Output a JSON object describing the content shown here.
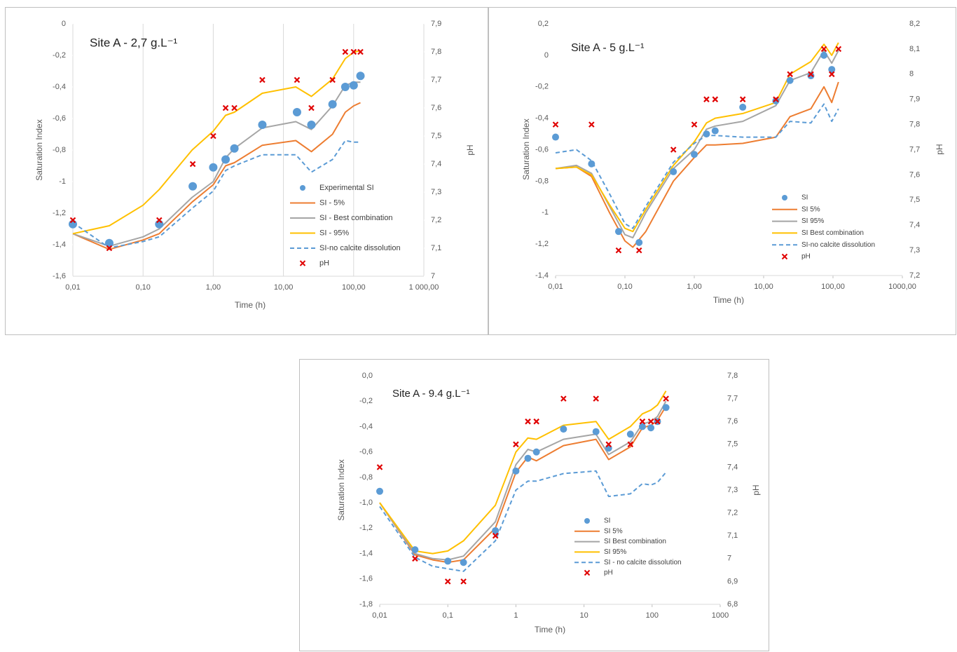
{
  "chart_data": [
    {
      "type": "line",
      "title": "Site A - 2,7 g.L⁻¹",
      "x_label": "Time (h)",
      "y_label": "Saturation Index",
      "y2_label": "pH",
      "x_scale": "log",
      "grid_x": true,
      "legend": "lower right",
      "xlim": [
        0.01,
        1000
      ],
      "xticks": [
        {
          "value": 0.01,
          "label": "0,01"
        },
        {
          "value": 0.1,
          "label": "0,10"
        },
        {
          "value": 1,
          "label": "1,00"
        },
        {
          "value": 10,
          "label": "10,00"
        },
        {
          "value": 100,
          "label": "100,00"
        },
        {
          "value": 1000,
          "label": "1 000,00"
        }
      ],
      "ylim": [
        -1.6,
        0
      ],
      "yticks": [
        0,
        {
          "value": -0.2,
          "label": "-0,2"
        },
        {
          "value": -0.4,
          "label": "-0,4"
        },
        {
          "value": -0.6,
          "label": "-0,6"
        },
        {
          "value": -0.8,
          "label": "-0,8"
        },
        -1,
        {
          "value": -1.2,
          "label": "-1,2"
        },
        {
          "value": -1.4,
          "label": "-1,4"
        },
        {
          "value": -1.6,
          "label": "-1,6"
        }
      ],
      "y2lim": [
        7,
        7.9
      ],
      "y2ticks": [
        {
          "value": 7.9,
          "label": "7,9"
        },
        {
          "value": 7.8,
          "label": "7,8"
        },
        {
          "value": 7.7,
          "label": "7,7"
        },
        {
          "value": 7.6,
          "label": "7,6"
        },
        {
          "value": 7.5,
          "label": "7,5"
        },
        {
          "value": 7.4,
          "label": "7,4"
        },
        {
          "value": 7.3,
          "label": "7,3"
        },
        {
          "value": 7.2,
          "label": "7,2"
        },
        {
          "value": 7.1,
          "label": "7,1"
        },
        7
      ],
      "series": [
        {
          "name": "Experimental SI",
          "style": "dot",
          "color": "#5b9bd5",
          "x": [
            0.01,
            0.033,
            0.17,
            0.51,
            1,
            1.5,
            2,
            5,
            15.6,
            25,
            50,
            76,
            100,
            125
          ],
          "values": [
            -1.27,
            -1.39,
            -1.27,
            -1.03,
            -0.91,
            -0.86,
            -0.79,
            -0.64,
            -0.56,
            -0.64,
            -0.51,
            -0.4,
            -0.39,
            -0.33
          ]
        },
        {
          "name": "SI - 5%",
          "style": "line",
          "color": "#ed7d31",
          "x": [
            0.01,
            0.033,
            0.1,
            0.17,
            0.5,
            1,
            1.5,
            2,
            5,
            15,
            25,
            50,
            76,
            100,
            125
          ],
          "values": [
            -1.33,
            -1.43,
            -1.37,
            -1.33,
            -1.13,
            -1.02,
            -0.9,
            -0.88,
            -0.77,
            -0.74,
            -0.81,
            -0.7,
            -0.56,
            -0.52,
            -0.5
          ]
        },
        {
          "name": "SI - Best combination",
          "style": "line",
          "color": "#a5a5a5",
          "x": [
            0.01,
            0.033,
            0.1,
            0.17,
            0.5,
            1,
            1.5,
            2,
            5,
            15,
            25,
            50,
            76,
            100,
            125
          ],
          "values": [
            -1.33,
            -1.41,
            -1.35,
            -1.3,
            -1.1,
            -1.0,
            -0.85,
            -0.79,
            -0.66,
            -0.62,
            -0.67,
            -0.52,
            -0.39,
            -0.37,
            -0.37
          ]
        },
        {
          "name": "SI - 95%",
          "style": "line",
          "color": "#ffc000",
          "x": [
            0.01,
            0.033,
            0.1,
            0.17,
            0.5,
            1,
            1.5,
            2,
            5,
            15,
            25,
            50,
            76,
            100,
            125
          ],
          "values": [
            -1.33,
            -1.28,
            -1.15,
            -1.05,
            -0.8,
            -0.68,
            -0.58,
            -0.56,
            -0.44,
            -0.4,
            -0.46,
            -0.35,
            -0.22,
            -0.18,
            -0.17
          ]
        },
        {
          "name": "SI-no calcite dissolution",
          "style": "dashed",
          "color": "#5b9bd5",
          "x": [
            0.01,
            0.033,
            0.1,
            0.17,
            0.5,
            1,
            1.5,
            2,
            5,
            15,
            25,
            50,
            76,
            100,
            125
          ],
          "values": [
            -1.26,
            -1.42,
            -1.38,
            -1.35,
            -1.17,
            -1.06,
            -0.93,
            -0.9,
            -0.83,
            -0.83,
            -0.94,
            -0.86,
            -0.74,
            -0.75,
            -0.75
          ]
        },
        {
          "name": "pH",
          "style": "cross",
          "color": "#e00000",
          "axis": "y2",
          "x": [
            0.01,
            0.033,
            0.17,
            0.51,
            1,
            1.5,
            2,
            5,
            15.6,
            25,
            50,
            76,
            100,
            125
          ],
          "values": [
            7.2,
            7.1,
            7.2,
            7.4,
            7.5,
            7.6,
            7.6,
            7.7,
            7.7,
            7.6,
            7.7,
            7.8,
            7.8,
            7.8
          ]
        }
      ]
    },
    {
      "type": "line",
      "title": "Site A - 5 g.L⁻¹",
      "x_label": "Time (h)",
      "y_label": "Saturation Index",
      "y2_label": "pH",
      "x_scale": "log",
      "grid_x": false,
      "legend": "lower right",
      "xlim": [
        0.01,
        1000
      ],
      "xticks": [
        {
          "value": 0.01,
          "label": "0,01"
        },
        {
          "value": 0.1,
          "label": "0,10"
        },
        {
          "value": 1,
          "label": "1,00"
        },
        {
          "value": 10,
          "label": "10,00"
        },
        {
          "value": 100,
          "label": "100,00"
        },
        {
          "value": 1000,
          "label": "1000,00"
        }
      ],
      "ylim": [
        -1.4,
        0.2
      ],
      "yticks": [
        {
          "value": 0.2,
          "label": "0,2"
        },
        0,
        {
          "value": -0.2,
          "label": "-0,2"
        },
        {
          "value": -0.4,
          "label": "-0,4"
        },
        {
          "value": -0.6,
          "label": "-0,6"
        },
        {
          "value": -0.8,
          "label": "-0,8"
        },
        -1,
        {
          "value": -1.2,
          "label": "-1,2"
        },
        {
          "value": -1.4,
          "label": "-1,4"
        }
      ],
      "y2lim": [
        7.2,
        8.2
      ],
      "y2ticks": [
        {
          "value": 8.2,
          "label": "8,2"
        },
        {
          "value": 8.1,
          "label": "8,1"
        },
        8,
        {
          "value": 7.9,
          "label": "7,9"
        },
        {
          "value": 7.8,
          "label": "7,8"
        },
        {
          "value": 7.7,
          "label": "7,7"
        },
        {
          "value": 7.6,
          "label": "7,6"
        },
        {
          "value": 7.5,
          "label": "7,5"
        },
        {
          "value": 7.4,
          "label": "7,4"
        },
        {
          "value": 7.3,
          "label": "7,3"
        },
        {
          "value": 7.2,
          "label": "7,2"
        }
      ],
      "series": [
        {
          "name": "SI",
          "style": "dot",
          "color": "#5b9bd5",
          "x": [
            0.01,
            0.033,
            0.081,
            0.16,
            0.5,
            1,
            1.5,
            2,
            5,
            15,
            24,
            48,
            74,
            96
          ],
          "values": [
            -0.52,
            -0.69,
            -1.12,
            -1.19,
            -0.74,
            -0.63,
            -0.5,
            -0.48,
            -0.33,
            -0.29,
            -0.16,
            -0.13,
            0.0,
            -0.09
          ]
        },
        {
          "name": "SI 5%",
          "style": "line",
          "color": "#ed7d31",
          "x": [
            0.01,
            0.02,
            0.033,
            0.06,
            0.1,
            0.13,
            0.2,
            0.5,
            1,
            1.5,
            2,
            5,
            15,
            24,
            48,
            74,
            96,
            120
          ],
          "values": [
            -0.72,
            -0.71,
            -0.77,
            -1.0,
            -1.18,
            -1.22,
            -1.12,
            -0.8,
            -0.65,
            -0.57,
            -0.57,
            -0.56,
            -0.52,
            -0.39,
            -0.34,
            -0.2,
            -0.3,
            -0.17
          ]
        },
        {
          "name": "SI 95%",
          "style": "line",
          "color": "#a5a5a5",
          "x": [
            0.01,
            0.02,
            0.033,
            0.06,
            0.1,
            0.13,
            0.2,
            0.5,
            1,
            1.5,
            2,
            5,
            15,
            24,
            48,
            74,
            96,
            120
          ],
          "values": [
            -0.72,
            -0.7,
            -0.75,
            -0.96,
            -1.14,
            -1.16,
            -1.0,
            -0.72,
            -0.6,
            -0.47,
            -0.45,
            -0.42,
            -0.32,
            -0.16,
            -0.11,
            0.03,
            -0.05,
            0.03
          ]
        },
        {
          "name": "SI Best combination",
          "style": "line",
          "color": "#ffc000",
          "x": [
            0.01,
            0.02,
            0.033,
            0.06,
            0.1,
            0.13,
            0.2,
            0.5,
            1,
            1.5,
            2,
            5,
            15,
            24,
            48,
            74,
            96,
            120
          ],
          "values": [
            -0.72,
            -0.71,
            -0.76,
            -0.95,
            -1.1,
            -1.12,
            -0.98,
            -0.7,
            -0.55,
            -0.43,
            -0.4,
            -0.37,
            -0.3,
            -0.12,
            -0.04,
            0.07,
            0.0,
            0.08
          ]
        },
        {
          "name": "SI-no calcite dissolution",
          "style": "dashed",
          "color": "#5b9bd5",
          "x": [
            0.01,
            0.02,
            0.033,
            0.06,
            0.1,
            0.13,
            0.2,
            0.5,
            1,
            1.5,
            2,
            5,
            15,
            24,
            48,
            74,
            96,
            120
          ],
          "values": [
            -0.62,
            -0.6,
            -0.67,
            -0.88,
            -1.07,
            -1.1,
            -0.96,
            -0.68,
            -0.56,
            -0.51,
            -0.51,
            -0.52,
            -0.52,
            -0.42,
            -0.43,
            -0.31,
            -0.42,
            -0.34
          ]
        },
        {
          "name": "pH",
          "style": "cross",
          "color": "#e00000",
          "axis": "y2",
          "x": [
            0.01,
            0.033,
            0.081,
            0.16,
            0.5,
            1,
            1.5,
            2,
            5,
            15,
            24,
            48,
            74,
            96,
            120
          ],
          "values": [
            7.8,
            7.8,
            7.3,
            7.3,
            7.7,
            7.8,
            7.9,
            7.9,
            7.9,
            7.9,
            8,
            8,
            8.1,
            8,
            8.1
          ]
        }
      ]
    },
    {
      "type": "line",
      "title": "Site A - 9.4 g.L⁻¹",
      "x_label": "Time (h)",
      "y_label": "Saturation Index",
      "y2_label": "pH",
      "x_scale": "log",
      "grid_x": false,
      "legend": "lower right",
      "xlim": [
        0.01,
        1000
      ],
      "xticks": [
        {
          "value": 0.01,
          "label": "0,01"
        },
        {
          "value": 0.1,
          "label": "0,1"
        },
        1,
        10,
        100,
        1000
      ],
      "ylim": [
        -1.8,
        0
      ],
      "yticks": [
        {
          "value": 0,
          "label": "0,0"
        },
        {
          "value": -0.2,
          "label": "-0,2"
        },
        {
          "value": -0.4,
          "label": "-0,4"
        },
        {
          "value": -0.6,
          "label": "-0,6"
        },
        {
          "value": -0.8,
          "label": "-0,8"
        },
        {
          "value": -1,
          "label": "-1,0"
        },
        {
          "value": -1.2,
          "label": "-1,2"
        },
        {
          "value": -1.4,
          "label": "-1,4"
        },
        {
          "value": -1.6,
          "label": "-1,6"
        },
        {
          "value": -1.8,
          "label": "-1,8"
        }
      ],
      "y2lim": [
        6.8,
        7.8
      ],
      "y2ticks": [
        {
          "value": 7.8,
          "label": "7,8"
        },
        {
          "value": 7.7,
          "label": "7,7"
        },
        {
          "value": 7.6,
          "label": "7,6"
        },
        {
          "value": 7.5,
          "label": "7,5"
        },
        {
          "value": 7.4,
          "label": "7,4"
        },
        {
          "value": 7.3,
          "label": "7,3"
        },
        {
          "value": 7.2,
          "label": "7,2"
        },
        {
          "value": 7.1,
          "label": "7,1"
        },
        7,
        {
          "value": 6.9,
          "label": "6,9"
        },
        {
          "value": 6.8,
          "label": "6,8"
        }
      ],
      "series": [
        {
          "name": "SI",
          "style": "dot",
          "color": "#5b9bd5",
          "x": [
            0.01,
            0.033,
            0.1,
            0.17,
            0.5,
            1,
            1.5,
            2,
            5,
            15,
            23,
            48,
            72,
            96,
            120,
            160
          ],
          "values": [
            -0.91,
            -1.37,
            -1.46,
            -1.47,
            -1.22,
            -0.75,
            -0.65,
            -0.6,
            -0.42,
            -0.44,
            -0.57,
            -0.46,
            -0.4,
            -0.41,
            -0.36,
            -0.25
          ]
        },
        {
          "name": "SI 5%",
          "style": "line",
          "color": "#ed7d31",
          "x": [
            0.01,
            0.033,
            0.06,
            0.1,
            0.17,
            0.5,
            1,
            1.5,
            2,
            5,
            15,
            23,
            48,
            72,
            96,
            120,
            160
          ],
          "values": [
            -1.0,
            -1.41,
            -1.45,
            -1.47,
            -1.45,
            -1.2,
            -0.76,
            -0.64,
            -0.67,
            -0.55,
            -0.5,
            -0.66,
            -0.56,
            -0.41,
            -0.39,
            -0.35,
            -0.24
          ]
        },
        {
          "name": "SI Best combination",
          "style": "line",
          "color": "#a5a5a5",
          "x": [
            0.01,
            0.033,
            0.06,
            0.1,
            0.17,
            0.5,
            1,
            1.5,
            2,
            5,
            15,
            23,
            48,
            72,
            96,
            120,
            160
          ],
          "values": [
            -1.0,
            -1.4,
            -1.44,
            -1.45,
            -1.42,
            -1.15,
            -0.7,
            -0.58,
            -0.6,
            -0.5,
            -0.46,
            -0.62,
            -0.52,
            -0.38,
            -0.36,
            -0.32,
            -0.2
          ]
        },
        {
          "name": "SI 95%",
          "style": "line",
          "color": "#ffc000",
          "x": [
            0.01,
            0.033,
            0.06,
            0.1,
            0.17,
            0.5,
            1,
            1.5,
            2,
            5,
            15,
            23,
            48,
            72,
            96,
            120,
            160
          ],
          "values": [
            -1.0,
            -1.38,
            -1.4,
            -1.38,
            -1.3,
            -1.02,
            -0.6,
            -0.49,
            -0.5,
            -0.39,
            -0.36,
            -0.5,
            -0.4,
            -0.3,
            -0.27,
            -0.23,
            -0.12
          ]
        },
        {
          "name": "SI - no calcite dissolution",
          "style": "dashed",
          "color": "#5b9bd5",
          "x": [
            0.01,
            0.033,
            0.06,
            0.1,
            0.17,
            0.5,
            1,
            1.5,
            2,
            5,
            15,
            23,
            48,
            72,
            96,
            120,
            160
          ],
          "values": [
            -1.03,
            -1.43,
            -1.5,
            -1.52,
            -1.54,
            -1.3,
            -0.9,
            -0.83,
            -0.83,
            -0.77,
            -0.75,
            -0.95,
            -0.93,
            -0.85,
            -0.86,
            -0.84,
            -0.76
          ]
        },
        {
          "name": "pH",
          "style": "cross",
          "color": "#e00000",
          "axis": "y2",
          "x": [
            0.01,
            0.033,
            0.1,
            0.17,
            0.5,
            1,
            1.5,
            2,
            5,
            15,
            23,
            48,
            72,
            96,
            120,
            160
          ],
          "values": [
            7.4,
            7.0,
            6.9,
            6.9,
            7.1,
            7.5,
            7.6,
            7.6,
            7.7,
            7.7,
            7.5,
            7.5,
            7.6,
            7.6,
            7.6,
            7.7
          ]
        }
      ]
    }
  ]
}
